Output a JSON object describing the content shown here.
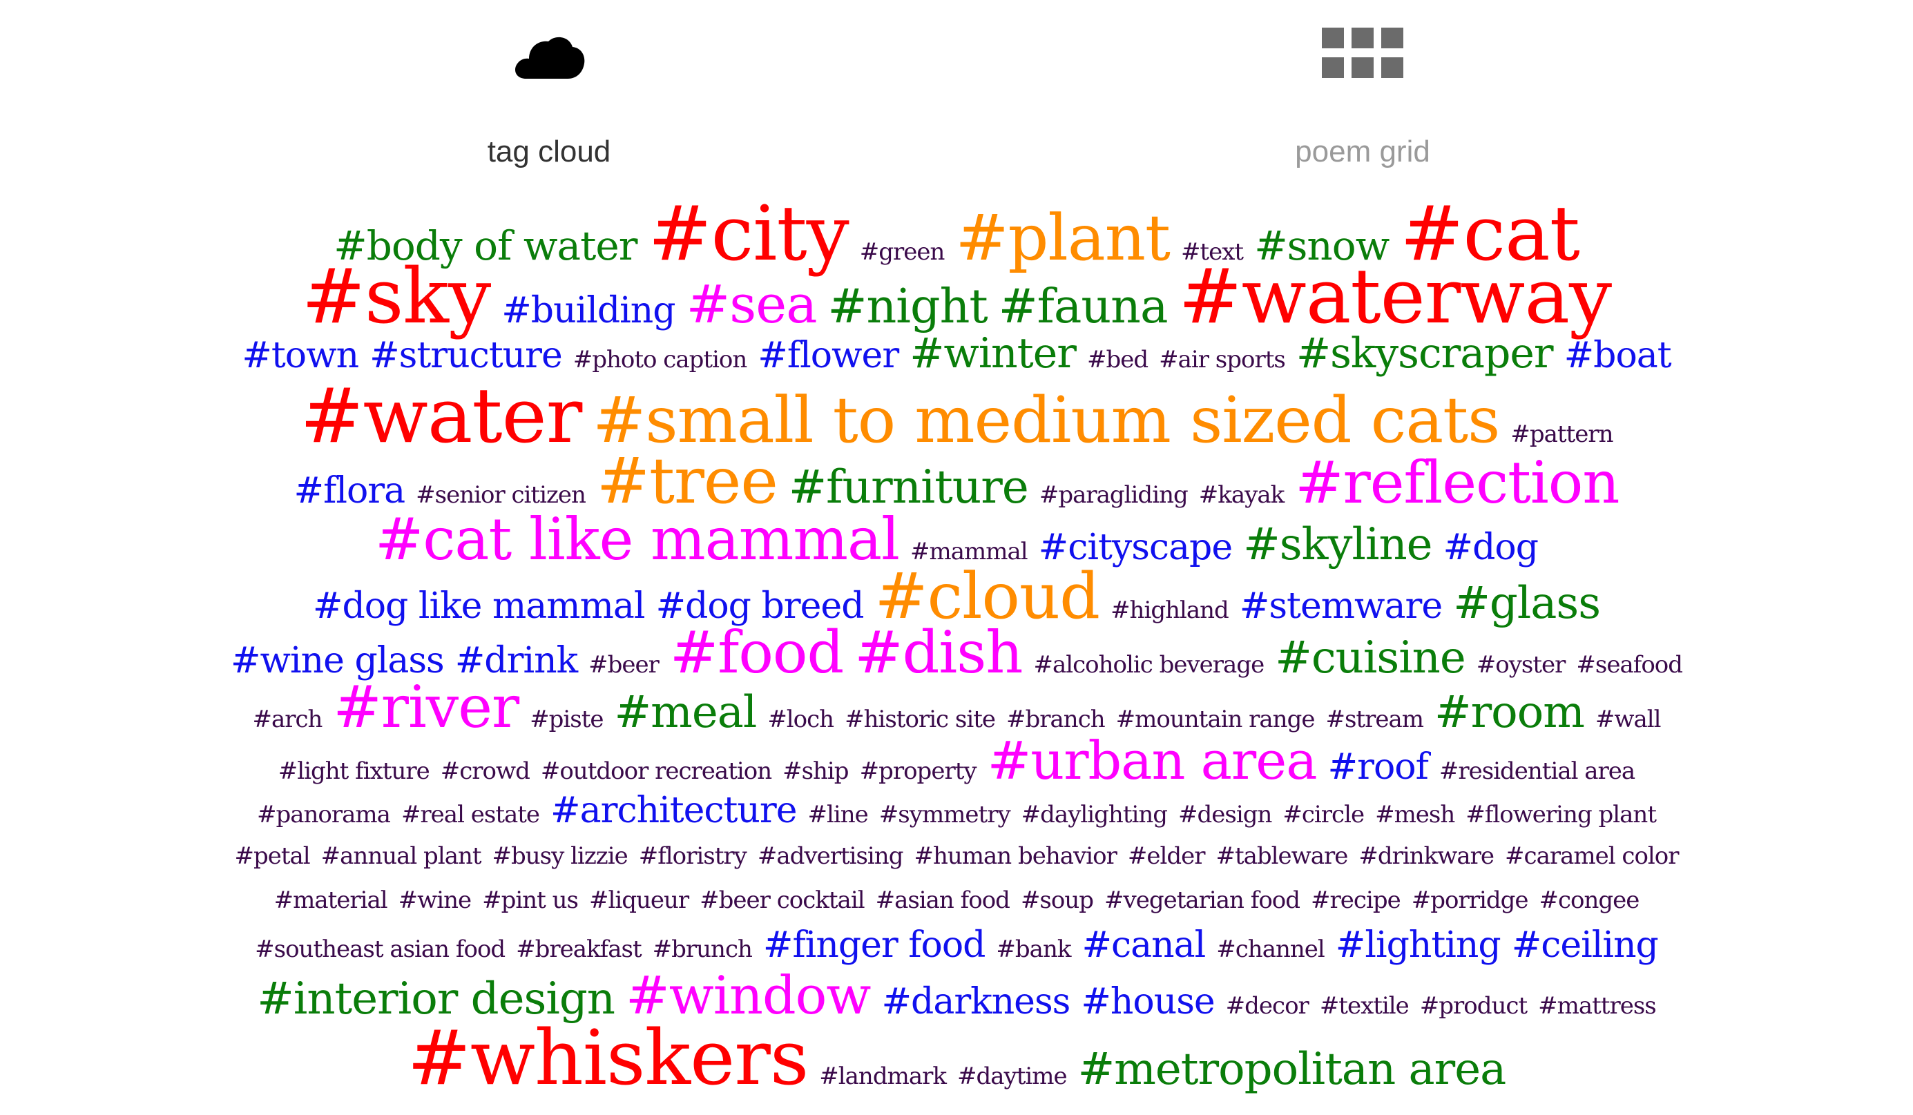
{
  "nav": {
    "tabs": [
      {
        "label": "tag cloud",
        "icon": "cloud-icon"
      },
      {
        "label": "poem grid",
        "icon": "grid-icon"
      }
    ]
  },
  "colors": {
    "active_label": "#333333",
    "inactive_label": "#9a9a9a",
    "cloud_icon": "#000000",
    "grid_icon": "#6b6b6b",
    "red": "#ff0000",
    "orange": "#ff8c00",
    "magenta": "#ff00ff",
    "green": "#0a7d0a",
    "blue": "#1010ee",
    "purple": "#3a0a4a"
  },
  "tag_cloud": {
    "rows": [
      {
        "lh": 92,
        "tags": [
          {
            "t": "#body of water",
            "s": 58,
            "c": "green"
          },
          {
            "t": "#city",
            "s": 110,
            "c": "red"
          },
          {
            "t": "#green",
            "s": 34,
            "c": "purple"
          },
          {
            "t": "#plant",
            "s": 92,
            "c": "orange"
          },
          {
            "t": "#text",
            "s": 34,
            "c": "purple"
          },
          {
            "t": "#snow",
            "s": 58,
            "c": "green"
          },
          {
            "t": "#cat",
            "s": 110,
            "c": "red"
          }
        ]
      },
      {
        "lh": 90,
        "tags": [
          {
            "t": "#sky",
            "s": 110,
            "c": "red"
          },
          {
            "t": "#building",
            "s": 52,
            "c": "blue"
          },
          {
            "t": "#sea",
            "s": 76,
            "c": "magenta"
          },
          {
            "t": "#night",
            "s": 68,
            "c": "green"
          },
          {
            "t": "#fauna",
            "s": 68,
            "c": "green"
          },
          {
            "t": "#waterway",
            "s": 110,
            "c": "red"
          }
        ]
      },
      {
        "lh": 76,
        "tags": [
          {
            "t": "#town",
            "s": 52,
            "c": "blue"
          },
          {
            "t": "#structure",
            "s": 52,
            "c": "blue"
          },
          {
            "t": "#photo caption",
            "s": 34,
            "c": "purple"
          },
          {
            "t": "#flower",
            "s": 52,
            "c": "blue"
          },
          {
            "t": "#winter",
            "s": 60,
            "c": "green"
          },
          {
            "t": "#bed",
            "s": 34,
            "c": "purple"
          },
          {
            "t": "#air sports",
            "s": 34,
            "c": "purple"
          },
          {
            "t": "#skyscraper",
            "s": 60,
            "c": "green"
          },
          {
            "t": "#boat",
            "s": 52,
            "c": "blue"
          }
        ]
      },
      {
        "lh": 104,
        "tags": [
          {
            "t": "#water",
            "s": 110,
            "c": "red"
          },
          {
            "t": "#small to medium sized cats",
            "s": 92,
            "c": "orange"
          },
          {
            "t": "#pattern",
            "s": 34,
            "c": "purple"
          }
        ]
      },
      {
        "lh": 86,
        "tags": [
          {
            "t": "#flora",
            "s": 52,
            "c": "blue"
          },
          {
            "t": "#senior citizen",
            "s": 34,
            "c": "purple"
          },
          {
            "t": "#tree",
            "s": 92,
            "c": "orange"
          },
          {
            "t": "#furniture",
            "s": 66,
            "c": "green"
          },
          {
            "t": "#paragliding",
            "s": 34,
            "c": "purple"
          },
          {
            "t": "#kayak",
            "s": 34,
            "c": "purple"
          },
          {
            "t": "#reflection",
            "s": 84,
            "c": "magenta"
          }
        ]
      },
      {
        "lh": 82,
        "tags": [
          {
            "t": "#cat like mammal",
            "s": 84,
            "c": "magenta"
          },
          {
            "t": "#mammal",
            "s": 34,
            "c": "purple"
          },
          {
            "t": "#cityscape",
            "s": 52,
            "c": "blue"
          },
          {
            "t": "#skyline",
            "s": 64,
            "c": "green"
          },
          {
            "t": "#dog",
            "s": 52,
            "c": "blue"
          }
        ]
      },
      {
        "lh": 84,
        "tags": [
          {
            "t": "#dog like mammal",
            "s": 52,
            "c": "blue"
          },
          {
            "t": "#dog breed",
            "s": 52,
            "c": "blue"
          },
          {
            "t": "#cloud",
            "s": 92,
            "c": "orange"
          },
          {
            "t": "#highland",
            "s": 34,
            "c": "purple"
          },
          {
            "t": "#stemware",
            "s": 52,
            "c": "blue"
          },
          {
            "t": "#glass",
            "s": 64,
            "c": "green"
          }
        ]
      },
      {
        "lh": 78,
        "tags": [
          {
            "t": "#wine glass",
            "s": 52,
            "c": "blue"
          },
          {
            "t": "#drink",
            "s": 52,
            "c": "blue"
          },
          {
            "t": "#beer",
            "s": 34,
            "c": "purple"
          },
          {
            "t": "#food",
            "s": 84,
            "c": "magenta"
          },
          {
            "t": "#dish",
            "s": 84,
            "c": "magenta"
          },
          {
            "t": "#alcoholic beverage",
            "s": 34,
            "c": "purple"
          },
          {
            "t": "#cuisine",
            "s": 64,
            "c": "green"
          },
          {
            "t": "#oyster",
            "s": 34,
            "c": "purple"
          },
          {
            "t": "#seafood",
            "s": 34,
            "c": "purple"
          }
        ]
      },
      {
        "lh": 80,
        "tags": [
          {
            "t": "#arch",
            "s": 34,
            "c": "purple"
          },
          {
            "t": "#river",
            "s": 84,
            "c": "magenta"
          },
          {
            "t": "#piste",
            "s": 34,
            "c": "purple"
          },
          {
            "t": "#meal",
            "s": 64,
            "c": "green"
          },
          {
            "t": "#loch",
            "s": 34,
            "c": "purple"
          },
          {
            "t": "#historic site",
            "s": 34,
            "c": "purple"
          },
          {
            "t": "#branch",
            "s": 34,
            "c": "purple"
          },
          {
            "t": "#mountain range",
            "s": 34,
            "c": "purple"
          },
          {
            "t": "#stream",
            "s": 34,
            "c": "purple"
          },
          {
            "t": "#room",
            "s": 64,
            "c": "green"
          },
          {
            "t": "#wall",
            "s": 34,
            "c": "purple"
          }
        ]
      },
      {
        "lh": 76,
        "tags": [
          {
            "t": "#light fixture",
            "s": 34,
            "c": "purple"
          },
          {
            "t": "#crowd",
            "s": 34,
            "c": "purple"
          },
          {
            "t": "#outdoor recreation",
            "s": 34,
            "c": "purple"
          },
          {
            "t": "#ship",
            "s": 34,
            "c": "purple"
          },
          {
            "t": "#property",
            "s": 34,
            "c": "purple"
          },
          {
            "t": "#urban area",
            "s": 76,
            "c": "magenta"
          },
          {
            "t": "#roof",
            "s": 52,
            "c": "blue"
          },
          {
            "t": "#residential area",
            "s": 34,
            "c": "purple"
          }
        ]
      },
      {
        "lh": 68,
        "tags": [
          {
            "t": "#panorama",
            "s": 34,
            "c": "purple"
          },
          {
            "t": "#real estate",
            "s": 34,
            "c": "purple"
          },
          {
            "t": "#architecture",
            "s": 52,
            "c": "blue"
          },
          {
            "t": "#line",
            "s": 34,
            "c": "purple"
          },
          {
            "t": "#symmetry",
            "s": 34,
            "c": "purple"
          },
          {
            "t": "#daylighting",
            "s": 34,
            "c": "purple"
          },
          {
            "t": "#design",
            "s": 34,
            "c": "purple"
          },
          {
            "t": "#circle",
            "s": 34,
            "c": "purple"
          },
          {
            "t": "#mesh",
            "s": 34,
            "c": "purple"
          },
          {
            "t": "#flowering plant",
            "s": 34,
            "c": "purple"
          }
        ]
      },
      {
        "lh": 64,
        "tags": [
          {
            "t": "#petal",
            "s": 34,
            "c": "purple"
          },
          {
            "t": "#annual plant",
            "s": 34,
            "c": "purple"
          },
          {
            "t": "#busy lizzie",
            "s": 34,
            "c": "purple"
          },
          {
            "t": "#floristry",
            "s": 34,
            "c": "purple"
          },
          {
            "t": "#advertising",
            "s": 34,
            "c": "purple"
          },
          {
            "t": "#human behavior",
            "s": 34,
            "c": "purple"
          },
          {
            "t": "#elder",
            "s": 34,
            "c": "purple"
          },
          {
            "t": "#tableware",
            "s": 34,
            "c": "purple"
          },
          {
            "t": "#drinkware",
            "s": 34,
            "c": "purple"
          },
          {
            "t": "#caramel color",
            "s": 34,
            "c": "purple"
          }
        ]
      },
      {
        "lh": 64,
        "tags": [
          {
            "t": "#material",
            "s": 34,
            "c": "purple"
          },
          {
            "t": "#wine",
            "s": 34,
            "c": "purple"
          },
          {
            "t": "#pint us",
            "s": 34,
            "c": "purple"
          },
          {
            "t": "#liqueur",
            "s": 34,
            "c": "purple"
          },
          {
            "t": "#beer cocktail",
            "s": 34,
            "c": "purple"
          },
          {
            "t": "#asian food",
            "s": 34,
            "c": "purple"
          },
          {
            "t": "#soup",
            "s": 34,
            "c": "purple"
          },
          {
            "t": "#vegetarian food",
            "s": 34,
            "c": "purple"
          },
          {
            "t": "#recipe",
            "s": 34,
            "c": "purple"
          },
          {
            "t": "#porridge",
            "s": 34,
            "c": "purple"
          },
          {
            "t": "#congee",
            "s": 34,
            "c": "purple"
          }
        ]
      },
      {
        "lh": 66,
        "tags": [
          {
            "t": "#southeast asian food",
            "s": 34,
            "c": "purple"
          },
          {
            "t": "#breakfast",
            "s": 34,
            "c": "purple"
          },
          {
            "t": "#brunch",
            "s": 34,
            "c": "purple"
          },
          {
            "t": "#finger food",
            "s": 52,
            "c": "blue"
          },
          {
            "t": "#bank",
            "s": 34,
            "c": "purple"
          },
          {
            "t": "#canal",
            "s": 52,
            "c": "blue"
          },
          {
            "t": "#channel",
            "s": 34,
            "c": "purple"
          },
          {
            "t": "#lighting",
            "s": 52,
            "c": "blue"
          },
          {
            "t": "#ceiling",
            "s": 52,
            "c": "blue"
          }
        ]
      },
      {
        "lh": 80,
        "tags": [
          {
            "t": "#interior design",
            "s": 64,
            "c": "green"
          },
          {
            "t": "#window",
            "s": 76,
            "c": "magenta"
          },
          {
            "t": "#darkness",
            "s": 52,
            "c": "blue"
          },
          {
            "t": "#house",
            "s": 52,
            "c": "blue"
          },
          {
            "t": "#decor",
            "s": 34,
            "c": "purple"
          },
          {
            "t": "#textile",
            "s": 34,
            "c": "purple"
          },
          {
            "t": "#product",
            "s": 34,
            "c": "purple"
          },
          {
            "t": "#mattress",
            "s": 34,
            "c": "purple"
          }
        ]
      },
      {
        "lh": 100,
        "tags": [
          {
            "t": "#whiskers",
            "s": 110,
            "c": "red"
          },
          {
            "t": "#landmark",
            "s": 34,
            "c": "purple"
          },
          {
            "t": "#daytime",
            "s": 34,
            "c": "purple"
          },
          {
            "t": "#metropolitan area",
            "s": 64,
            "c": "green"
          }
        ]
      }
    ]
  }
}
